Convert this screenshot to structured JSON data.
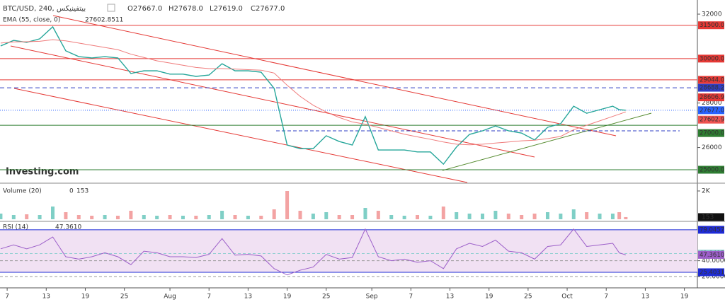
{
  "header": {
    "symbol": "BTC/USD, 240, بيتفينيكس",
    "open": "O27667.0",
    "high": "H27678.0",
    "low": "L27619.0",
    "close": "C27677.0",
    "logo": "Investing.com"
  },
  "chart_data": [
    {
      "type": "line",
      "x": [
        -1,
        1,
        3,
        5,
        7,
        9,
        11,
        13,
        15,
        17,
        19,
        21,
        23,
        25,
        27,
        29,
        31,
        33,
        35,
        37,
        39,
        41,
        43,
        45,
        47,
        49,
        51,
        53,
        55,
        57,
        59,
        61,
        63,
        65,
        67,
        69,
        71,
        73,
        75,
        77,
        79,
        81,
        83,
        85,
        87,
        89,
        91,
        93,
        94,
        95
      ],
      "xlim": [
        -1.1,
        106
      ],
      "xticks": [
        {
          "value": 0,
          "label": "7"
        },
        {
          "value": 6,
          "label": "13"
        },
        {
          "value": 12,
          "label": "19"
        },
        {
          "value": 18,
          "label": "25"
        },
        {
          "value": 25,
          "label": "Aug"
        },
        {
          "value": 31,
          "label": "7"
        },
        {
          "value": 37,
          "label": "13"
        },
        {
          "value": 43,
          "label": "19"
        },
        {
          "value": 49,
          "label": "25"
        },
        {
          "value": 56,
          "label": "Sep"
        },
        {
          "value": 62,
          "label": "7"
        },
        {
          "value": 68,
          "label": "13"
        },
        {
          "value": 74,
          "label": "19"
        },
        {
          "value": 80,
          "label": "25"
        },
        {
          "value": 86,
          "label": "Oct"
        },
        {
          "value": 92,
          "label": "7"
        },
        {
          "value": 98,
          "label": "13"
        },
        {
          "value": 104,
          "label": "19"
        }
      ],
      "series": [
        {
          "color": "#26a69a",
          "values": [
            30570,
            30820,
            30730,
            30890,
            31430,
            30350,
            30090,
            30030,
            30090,
            30030,
            29330,
            29450,
            29450,
            29300,
            29300,
            29200,
            29260,
            29770,
            29450,
            29450,
            29390,
            28660,
            26110,
            25950,
            25950,
            26530,
            26270,
            26110,
            27390,
            25890,
            25890,
            25890,
            25800,
            25800,
            25250,
            26020,
            26590,
            26750,
            26970,
            26750,
            26650,
            26340,
            26910,
            27070,
            27860,
            27540,
            27700,
            27860,
            27700,
            27677
          ]
        },
        {
          "name": "EMA (55, close, 0)",
          "color": "#ef7b7b",
          "current": {
            "value": 27602.8511,
            "label": "27602.8511"
          },
          "values": [
            30700,
            30750,
            30760,
            30780,
            30850,
            30800,
            30700,
            30600,
            30500,
            30400,
            30200,
            30050,
            29900,
            29800,
            29700,
            29600,
            29550,
            29550,
            29530,
            29500,
            29480,
            29350,
            28800,
            28300,
            27900,
            27600,
            27350,
            27150,
            27050,
            26900,
            26750,
            26600,
            26480,
            26370,
            26250,
            26150,
            26120,
            26150,
            26200,
            26250,
            26300,
            26330,
            26400,
            26500,
            26800,
            27000,
            27200,
            27400,
            27500,
            27602.9
          ]
        }
      ],
      "ylim": [
        24427,
        32636
      ],
      "yticks": [
        26000,
        28000,
        32000
      ],
      "levels": [
        {
          "value": 31500,
          "label": "31500.0",
          "color": "#e53935",
          "style": "solid"
        },
        {
          "value": 30000,
          "label": "30000.0",
          "color": "#e53935",
          "style": "solid"
        },
        {
          "value": 29044,
          "label": "29044.0",
          "color": "#e53935",
          "style": "solid"
        },
        {
          "value": 28688.2,
          "label": "28688.2",
          "color": "#2f3fc4",
          "style": "dashed"
        },
        {
          "value": 28606.9,
          "label": "28606.9",
          "color": "#e53935",
          "style": "none"
        },
        {
          "value": 27677,
          "label": "27677.0",
          "color": "#2962ff",
          "style": "dotted"
        },
        {
          "value": 27602.9,
          "label": "27602.9",
          "color": "#ef5350",
          "style": "none"
        },
        {
          "value": 27000,
          "label": "27000.0",
          "color": "#2e7d32",
          "style": "solid"
        },
        {
          "value": 25000,
          "label": "25000.0",
          "color": "#2e7d32",
          "style": "solid"
        }
      ]
    },
    {
      "type": "bar",
      "title": "Volume (20)",
      "ma_value": 0,
      "values": [
        400,
        300,
        350,
        300,
        900,
        500,
        300,
        250,
        300,
        250,
        600,
        300,
        250,
        300,
        250,
        250,
        300,
        600,
        300,
        250,
        250,
        700,
        2000,
        600,
        400,
        500,
        300,
        300,
        800,
        600,
        300,
        250,
        300,
        250,
        900,
        500,
        400,
        400,
        600,
        400,
        300,
        400,
        500,
        400,
        700,
        500,
        400,
        400,
        500,
        153
      ],
      "ylim": [
        0,
        2400
      ],
      "yticks": [
        {
          "value": 2000,
          "label": "2K"
        }
      ]
    },
    {
      "type": "line",
      "title": "RSI (14)",
      "color": "#9c5fc9",
      "current": {
        "value": 47.361,
        "label": "47.3610"
      },
      "values": [
        55,
        60,
        55,
        60,
        70,
        45,
        42,
        45,
        50,
        45,
        35,
        52,
        50,
        45,
        45,
        44,
        48,
        68,
        47,
        48,
        46,
        30,
        22,
        28,
        32,
        48,
        42,
        44,
        80,
        45,
        40,
        42,
        38,
        40,
        30,
        55,
        62,
        58,
        66,
        52,
        50,
        42,
        58,
        60,
        80,
        58,
        60,
        62,
        50,
        47.361
      ],
      "ylim": [
        7.5,
        87
      ],
      "yticks": [
        {
          "value": 20,
          "label": "20.0000"
        },
        {
          "value": 40,
          "label": "40.0000"
        }
      ],
      "levels": [
        {
          "value": 79.0457,
          "label": "79.0457",
          "color": "#1e2bd6"
        },
        {
          "value": 49.0415,
          "label": "49.0415",
          "color": "#8fcfd0"
        },
        {
          "value": 25.4031,
          "label": "25.4031",
          "color": "#1e2bd6"
        }
      ]
    }
  ]
}
